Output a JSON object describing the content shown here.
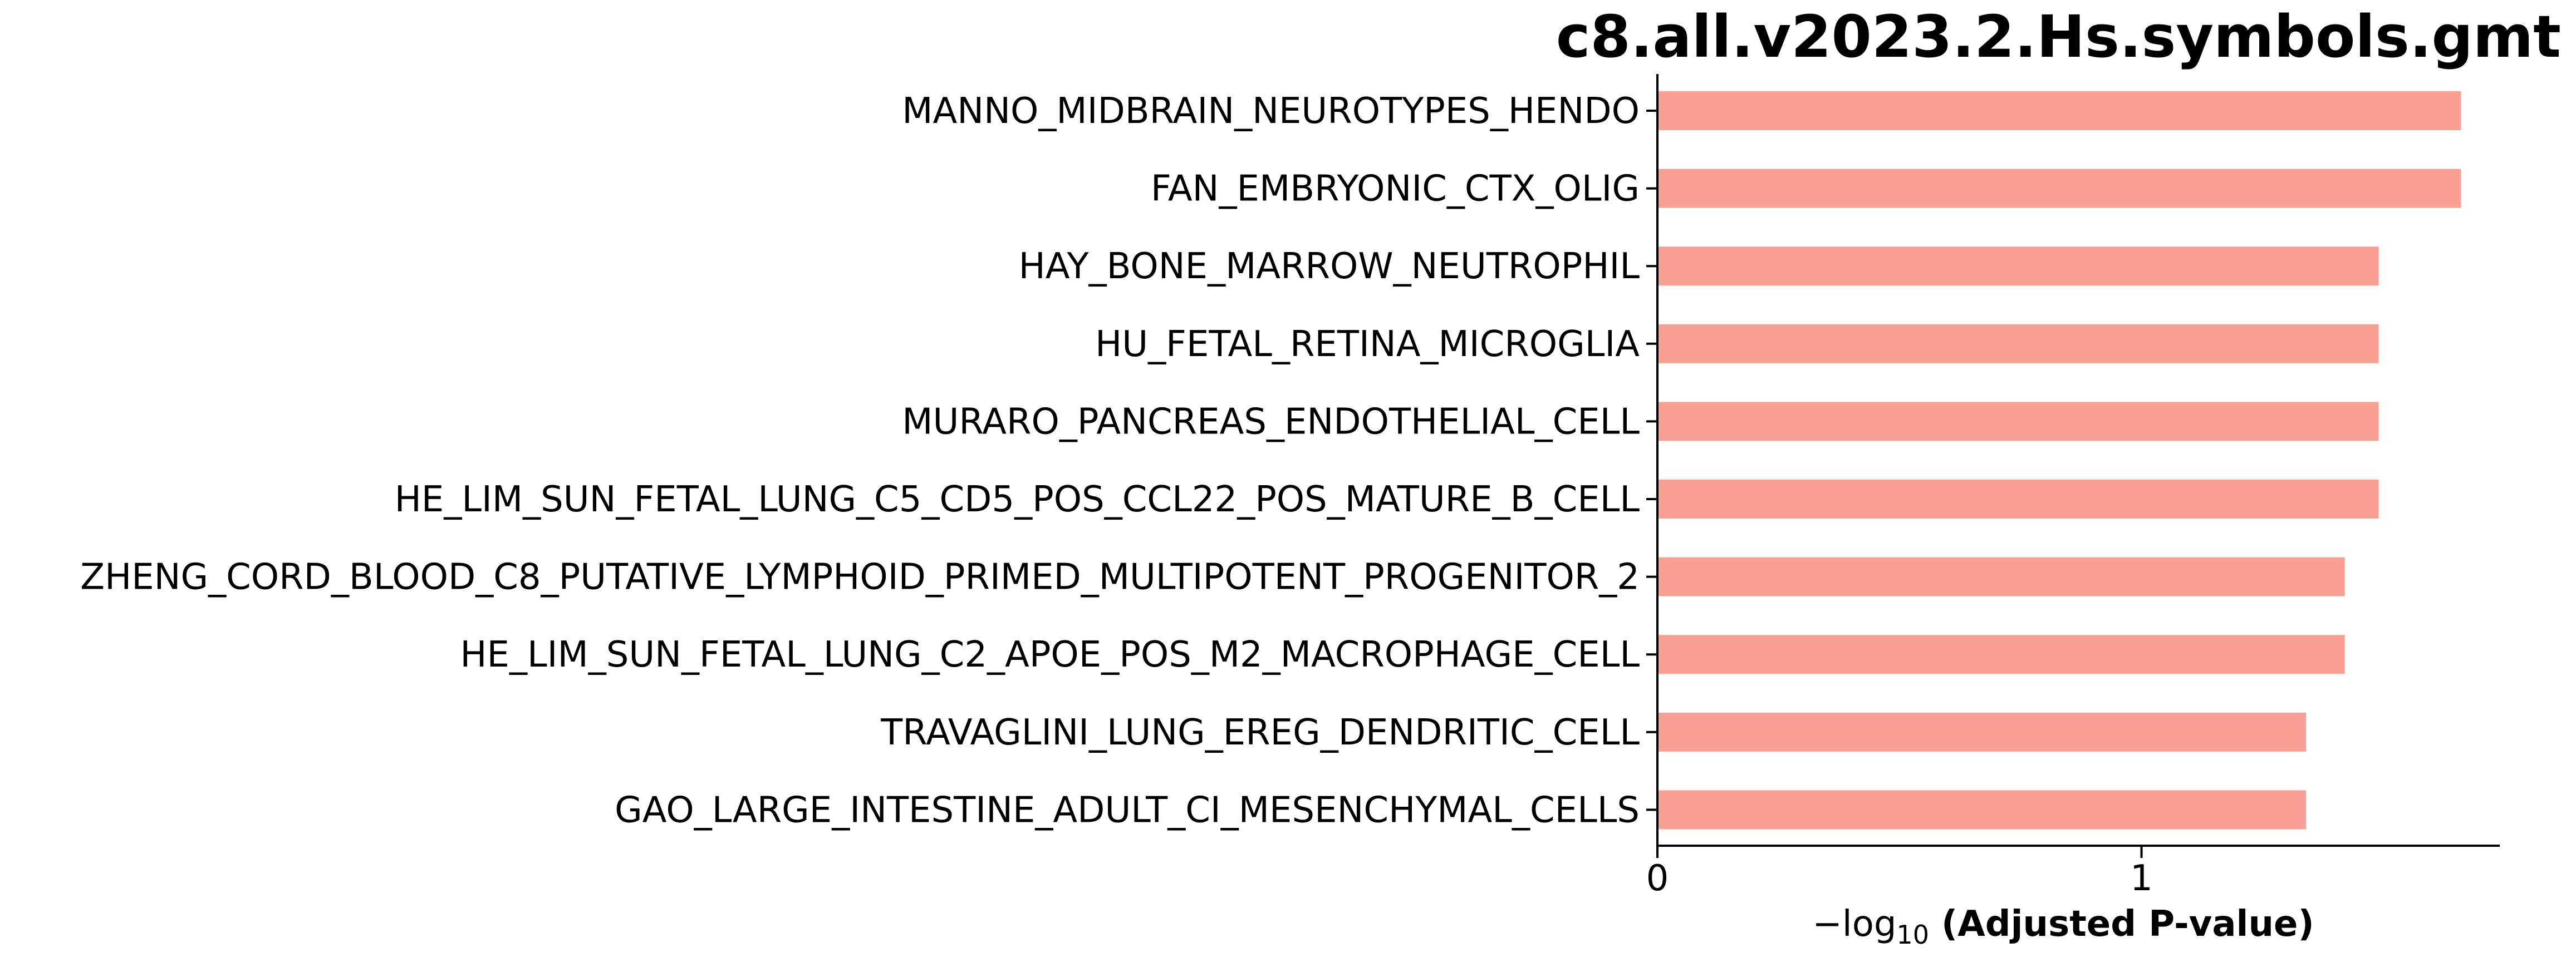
{
  "chart_data": {
    "type": "bar",
    "orientation": "horizontal",
    "title": "c8.all.v2023.2.Hs.symbols.gmt",
    "xlabel": {
      "prefix": "−log",
      "subscript": "10",
      "bold": "(Adjusted P-value)"
    },
    "categories": [
      "MANNO_MIDBRAIN_NEUROTYPES_HENDO",
      "FAN_EMBRYONIC_CTX_OLIG",
      "HAY_BONE_MARROW_NEUTROPHIL",
      "HU_FETAL_RETINA_MICROGLIA",
      "MURARO_PANCREAS_ENDOTHELIAL_CELL",
      "HE_LIM_SUN_FETAL_LUNG_C5_CD5_POS_CCL22_POS_MATURE_B_CELL",
      "ZHENG_CORD_BLOOD_C8_PUTATIVE_LYMPHOID_PRIMED_MULTIPOTENT_PROGENITOR_2",
      "HE_LIM_SUN_FETAL_LUNG_C2_APOE_POS_M2_MACROPHAGE_CELL",
      "TRAVAGLINI_LUNG_EREG_DENDRITIC_CELL",
      "GAO_LARGE_INTESTINE_ADULT_CI_MESENCHYMAL_CELLS"
    ],
    "values": [
      1.66,
      1.66,
      1.49,
      1.49,
      1.49,
      1.49,
      1.42,
      1.42,
      1.34,
      1.34
    ],
    "xlim": [
      0,
      1.74
    ],
    "xticks": [
      {
        "value": 0,
        "label": "0"
      },
      {
        "value": 1,
        "label": "1"
      }
    ],
    "bar_color": "#f9a094",
    "grid": false
  }
}
